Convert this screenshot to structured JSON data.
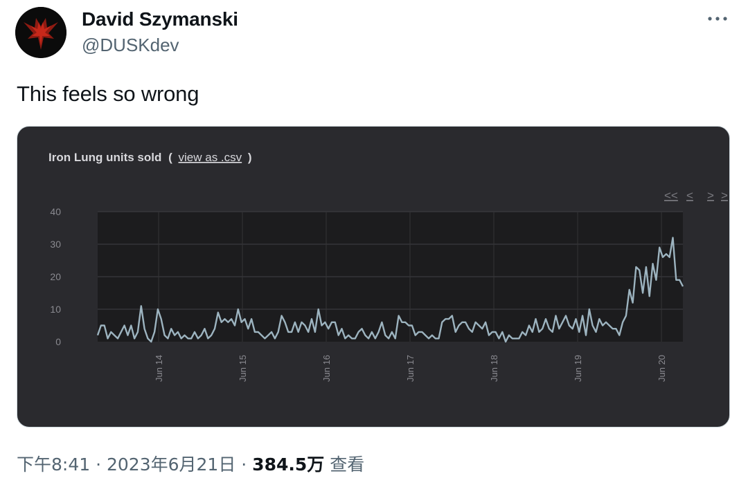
{
  "author": {
    "display_name": "David Szymanski",
    "handle": "@DUSKdev",
    "avatar_icon": "red-demon-logo-icon"
  },
  "more_icon": "more-dots-icon",
  "tweet": {
    "text": "This feels so wrong"
  },
  "media": {
    "title_prefix": "Iron Lung units sold",
    "title_paren_open": "(",
    "csv_link": "view as .csv",
    "title_paren_close": ")",
    "nav": {
      "first": "<<",
      "prev": "<",
      "next": ">",
      "last": ">"
    },
    "chart_data": {
      "type": "line",
      "title": "Iron Lung units sold",
      "ylim": [
        0,
        40
      ],
      "yticks": [
        0,
        10,
        20,
        30,
        40
      ],
      "xtick_labels": [
        "Jun 14",
        "Jun 15",
        "Jun 16",
        "Jun 17",
        "Jun 18",
        "Jun 19",
        "Jun 20"
      ],
      "grid": true,
      "series": [
        {
          "color": "#9db4c0",
          "values": [
            2,
            5,
            5,
            1,
            3,
            2,
            1,
            3,
            5,
            2,
            5,
            1,
            3,
            11,
            4,
            1,
            0,
            3,
            10,
            7,
            2,
            1,
            4,
            2,
            3,
            1,
            2,
            1,
            1,
            3,
            1,
            2,
            4,
            1,
            2,
            4,
            9,
            6,
            7,
            6,
            7,
            5,
            10,
            6,
            7,
            4,
            7,
            3,
            3,
            2,
            1,
            2,
            3,
            1,
            3,
            8,
            6,
            3,
            3,
            6,
            3,
            6,
            5,
            3,
            7,
            3,
            10,
            5,
            6,
            4,
            6,
            6,
            2,
            4,
            1,
            2,
            1,
            1,
            3,
            4,
            2,
            1,
            3,
            1,
            3,
            6,
            2,
            1,
            3,
            1,
            8,
            6,
            6,
            5,
            5,
            2,
            3,
            3,
            2,
            1,
            2,
            1,
            1,
            6,
            7,
            7,
            8,
            3,
            5,
            6,
            6,
            4,
            3,
            6,
            5,
            4,
            6,
            2,
            3,
            3,
            1,
            3,
            0,
            2,
            1,
            1,
            1,
            3,
            2,
            5,
            3,
            7,
            3,
            4,
            7,
            4,
            3,
            8,
            4,
            6,
            8,
            5,
            4,
            7,
            3,
            8,
            2,
            10,
            5,
            3,
            7,
            5,
            6,
            5,
            4,
            4,
            2,
            6,
            8,
            16,
            12,
            23,
            22,
            15,
            23,
            14,
            24,
            19,
            29,
            26,
            27,
            26,
            32,
            19,
            19,
            17
          ]
        }
      ]
    }
  },
  "footer": {
    "time": "下午8:41",
    "sep1": " · ",
    "date": "2023年6月21日",
    "sep2": " · ",
    "views_count": "384.5万",
    "views_label": " 查看"
  }
}
